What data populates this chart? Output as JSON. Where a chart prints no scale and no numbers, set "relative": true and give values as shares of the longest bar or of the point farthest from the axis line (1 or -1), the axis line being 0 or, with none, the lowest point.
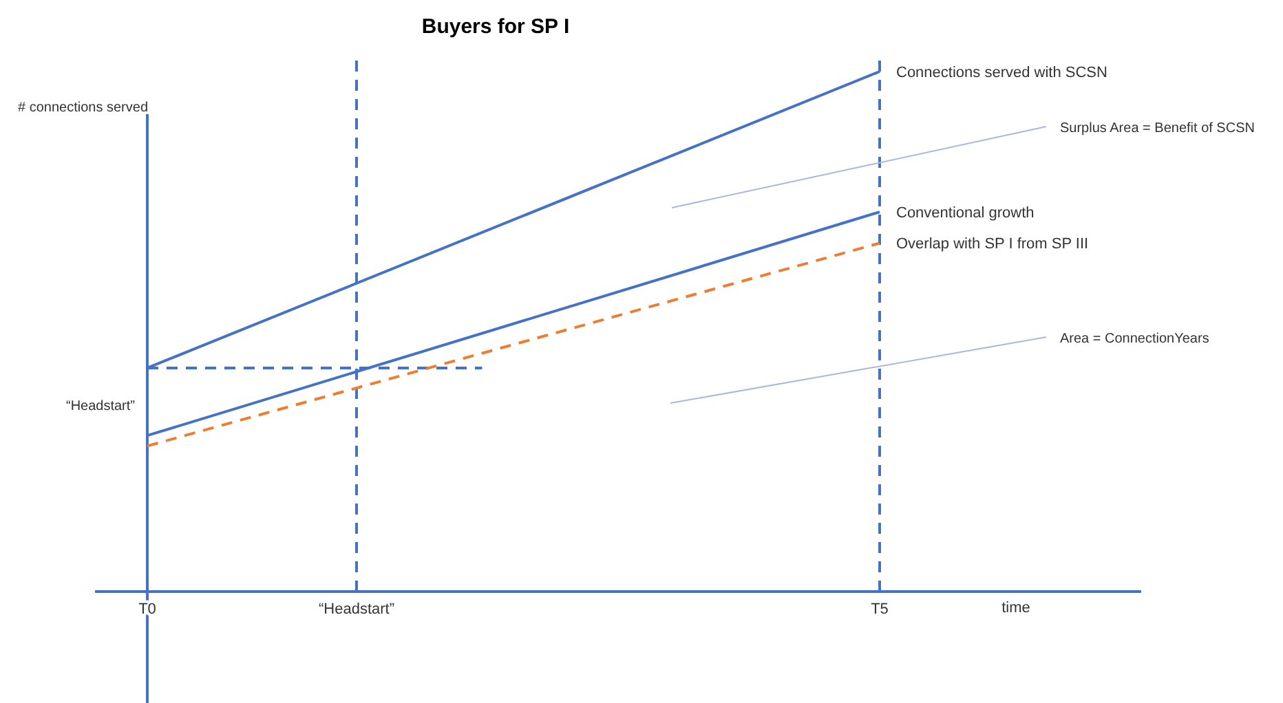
{
  "chart_data": {
    "type": "line",
    "title": "Buyers for SP I",
    "xlabel": "time",
    "ylabel": "# connections served",
    "relative": true,
    "categories": [
      null,
      "T0",
      null,
      null,
      null,
      "“Headstart”",
      null,
      null,
      null,
      null,
      null,
      null,
      null,
      null,
      null,
      "T5",
      null,
      null,
      null,
      null,
      null
    ],
    "grid": false,
    "legend": false,
    "marker": "none",
    "annotations": [
      "“Headstart”",
      "Surplus Area = Benefit of SCSN",
      "Area = ConnectionYears"
    ],
    "ref_lines": [
      {
        "axis": "y",
        "value": 0.43,
        "color": "#4472c4",
        "line_style": "dashed"
      },
      {
        "axis": "x",
        "value": "“Headstart”",
        "color": "#4472c4",
        "line_style": "dashed"
      },
      {
        "axis": "x",
        "value": "T5",
        "color": "#4472c4",
        "line_style": "dashed"
      }
    ],
    "series": [
      {
        "name": "Connections served with SCSN",
        "color": "#4472c4",
        "values": [
          null,
          0.43,
          null,
          null,
          null,
          null,
          null,
          null,
          null,
          null,
          null,
          null,
          null,
          null,
          null,
          1,
          null,
          null,
          null,
          null,
          null
        ],
        "line_style": "solid"
      },
      {
        "name": "Conventional growth",
        "color": "#4472c4",
        "values": [
          null,
          0.3,
          null,
          null,
          null,
          null,
          null,
          null,
          null,
          null,
          null,
          null,
          null,
          null,
          null,
          0.73,
          null,
          null,
          null,
          null,
          null
        ],
        "line_style": "solid"
      },
      {
        "name": "Overlap with SP I from SP III",
        "color": "#ed7d31",
        "values": [
          null,
          0.28,
          null,
          null,
          null,
          null,
          null,
          null,
          null,
          null,
          null,
          null,
          null,
          null,
          null,
          0.67,
          null,
          null,
          null,
          null,
          null
        ],
        "line_style": "dashed"
      }
    ]
  }
}
